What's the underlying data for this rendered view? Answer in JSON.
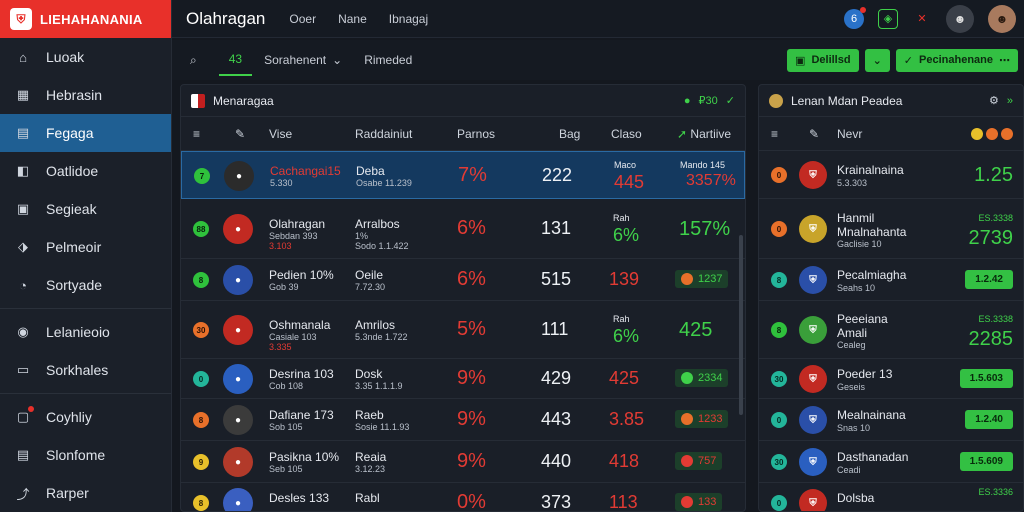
{
  "brand": {
    "name": "LIEHAHANANIA"
  },
  "sidebar": {
    "items": [
      {
        "label": "Luoak",
        "icon": "home-icon"
      },
      {
        "label": "Hebrasin",
        "icon": "grid-icon"
      },
      {
        "label": "Fegaga",
        "icon": "bag-icon",
        "active": true
      },
      {
        "label": "Oatlidoe",
        "icon": "square-icon"
      },
      {
        "label": "Segieak",
        "icon": "box-icon"
      },
      {
        "label": "Pelmeoir",
        "icon": "tag-icon"
      },
      {
        "label": "Sortyade",
        "icon": "clock-icon"
      },
      {
        "label": "Lelanieoio",
        "icon": "circle-icon"
      },
      {
        "label": "Sorkhales",
        "icon": "monitor-icon"
      },
      {
        "label": "Coyhliy",
        "icon": "chat-icon"
      },
      {
        "label": "Slonfome",
        "icon": "doc-icon"
      },
      {
        "label": "Rarper",
        "icon": "share-icon"
      }
    ]
  },
  "topbar": {
    "title": "Olahragan",
    "links": [
      "Ooer",
      "Nane",
      "Ibnagaj"
    ]
  },
  "filters": {
    "count": "43",
    "sort": "Sorahenent",
    "extra": "Rimeded",
    "btn1": "Delillsd",
    "btn2": "Pecinahenane"
  },
  "main": {
    "header": {
      "title": "Menaragaa",
      "right": "₽30"
    },
    "columns": [
      "Vise",
      "Raddainiut",
      "Parnos",
      "Bag",
      "Claso",
      "Nartiive"
    ],
    "rows": [
      {
        "n": "7",
        "team": "Cachangai15",
        "sub": "5.330",
        "mid1": "Deba",
        "mid2": "Osabe 11.239",
        "pct": "7%",
        "val": "222",
        "c1": "Maco",
        "c1b": "445",
        "c2": "Mando 145",
        "c2b": "3357%"
      },
      {
        "n": "88",
        "team": "Olahragan",
        "sub": "Sebdan 393",
        "sub2": "3.103",
        "mid1": "Arralbos",
        "mid2": "1%",
        "mid3": "Sodo 1.1.422",
        "pct": "6%",
        "val": "131",
        "c1": "Rah",
        "c1b": "6%",
        "c2": "157%"
      },
      {
        "n": "8",
        "team": "Pedien 10%",
        "sub": "Gob 39",
        "mid1": "Oeile",
        "mid2": "7.72.30",
        "pct": "6%",
        "val": "515",
        "c1": "139",
        "c2": "1237"
      },
      {
        "n": "30",
        "team": "Oshmanala",
        "sub": "Casiale 103",
        "sub2": "3.335",
        "mid1": "Amrilos",
        "mid2": "5.3nde 1.722",
        "pct": "5%",
        "val": "111",
        "c1": "Rah",
        "c1b": "6%",
        "c2": "425"
      },
      {
        "n": "0",
        "team": "Desrina 103",
        "sub": "Cob 108",
        "mid1": "Dosk",
        "mid2": "3.35 1.1.1.9",
        "pct": "9%",
        "val": "429",
        "c1": "425",
        "c2": "2334"
      },
      {
        "n": "8",
        "team": "Dafiane 173",
        "sub": "Sob 105",
        "mid1": "Raeb",
        "mid2": "Sosie 11.1.93",
        "pct": "9%",
        "val": "443",
        "c1": "3.85",
        "c2": "1233"
      },
      {
        "n": "9",
        "team": "Pasikna 10%",
        "sub": "Seb 105",
        "mid1": "Reaia",
        "mid2": "3.12.23",
        "pct": "9%",
        "val": "440",
        "c1": "418",
        "c2": "757"
      },
      {
        "n": "8",
        "team": "Desles 133",
        "sub": "",
        "mid1": "Rabl",
        "mid2": "",
        "pct": "0%",
        "val": "373",
        "c1": "113",
        "c2": "133"
      }
    ]
  },
  "side": {
    "header": {
      "title": "Lenan Mdan Peadea"
    },
    "column": "Nevr",
    "rows": [
      {
        "n": "0",
        "team": "Krainalnaina",
        "sub": "5.3.303",
        "odd": "1.25",
        "big": true
      },
      {
        "n": "0",
        "team": "Hanmil",
        "team2": "Mnalnahanta",
        "sub": "Gaclisie 10",
        "top": "ES.3338",
        "odd": "2739",
        "big": true
      },
      {
        "n": "8",
        "team": "Pecalmiagha",
        "sub": "Seahs 10",
        "odd": "1.2.42"
      },
      {
        "n": "8",
        "team": "Peeeiana",
        "team2": "Amali",
        "sub": "Cealeg",
        "top": "ES.3338",
        "odd": "2285",
        "big": true
      },
      {
        "n": "30",
        "team": "Poeder 13",
        "sub": "Geseis",
        "odd": "1.5.603"
      },
      {
        "n": "0",
        "team": "Mealnainana",
        "sub": "Snas 10",
        "odd": "1.2.40"
      },
      {
        "n": "30",
        "team": "Dasthanadan",
        "sub": "Ceadi",
        "odd": "1.5.609"
      },
      {
        "n": "0",
        "team": "Dolsba",
        "sub": "",
        "top": "ES.3336",
        "odd": ""
      }
    ]
  },
  "colors": {
    "accent": "#33c043",
    "brand": "#e8302a",
    "selected": "#14395f"
  }
}
